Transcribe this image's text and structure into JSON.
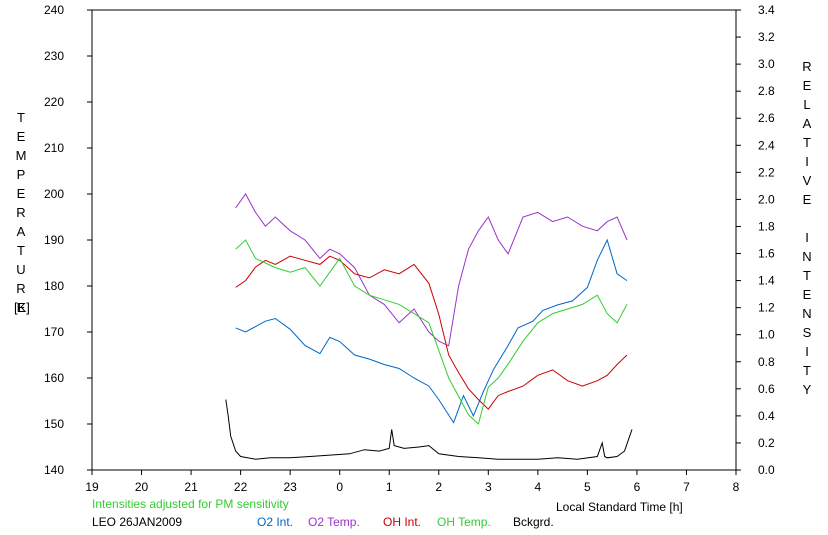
{
  "chart_data": {
    "type": "line",
    "left_axis_label": "TEMPERATURE",
    "left_axis_unit": "[K]",
    "right_axis_label": "RELATIVE INTENSITY",
    "xlabel": "Local Standard Time [h]",
    "x_ticks": [
      "19",
      "20",
      "21",
      "22",
      "23",
      "0",
      "1",
      "2",
      "3",
      "4",
      "5",
      "6",
      "7",
      "8"
    ],
    "xlim": [
      19,
      32
    ],
    "ylim_left": [
      140,
      240
    ],
    "y_ticks_left": [
      140,
      150,
      160,
      170,
      180,
      190,
      200,
      210,
      220,
      230,
      240
    ],
    "ylim_right": [
      0.0,
      3.4
    ],
    "y_ticks_right": [
      "0.0",
      "0.2",
      "0.4",
      "0.6",
      "0.8",
      "1.0",
      "1.2",
      "1.4",
      "1.6",
      "1.8",
      "2.0",
      "2.2",
      "2.4",
      "2.6",
      "2.8",
      "3.0",
      "3.2",
      "3.4"
    ],
    "note": "Intensities adjusted for PM sensitivity",
    "station": "LEO 26JAN2009",
    "series": [
      {
        "name": "O2 Int.",
        "color": "#0066cc",
        "axis": "right",
        "x": [
          21.9,
          22.1,
          22.3,
          22.5,
          22.7,
          23.0,
          23.3,
          23.6,
          23.8,
          24.0,
          24.3,
          24.6,
          24.9,
          25.2,
          25.5,
          25.8,
          26.0,
          26.3,
          26.5,
          26.7,
          26.9,
          27.1,
          27.4,
          27.6,
          27.9,
          28.1,
          28.4,
          28.7,
          29.0,
          29.2,
          29.4,
          29.6,
          29.8
        ],
        "y": [
          1.05,
          1.02,
          1.06,
          1.1,
          1.12,
          1.04,
          0.92,
          0.86,
          0.98,
          0.95,
          0.85,
          0.82,
          0.78,
          0.75,
          0.68,
          0.62,
          0.52,
          0.35,
          0.55,
          0.4,
          0.58,
          0.74,
          0.92,
          1.05,
          1.1,
          1.18,
          1.22,
          1.25,
          1.35,
          1.55,
          1.7,
          1.45,
          1.4
        ]
      },
      {
        "name": "O2 Temp.",
        "color": "#9933cc",
        "axis": "left",
        "x": [
          21.9,
          22.1,
          22.3,
          22.5,
          22.7,
          23.0,
          23.3,
          23.6,
          23.8,
          24.0,
          24.3,
          24.6,
          24.9,
          25.2,
          25.5,
          25.8,
          26.0,
          26.2,
          26.4,
          26.6,
          26.8,
          27.0,
          27.2,
          27.4,
          27.7,
          28.0,
          28.3,
          28.6,
          28.9,
          29.2,
          29.4,
          29.6,
          29.8
        ],
        "y": [
          197,
          200,
          196,
          193,
          195,
          192,
          190,
          186,
          188,
          187,
          184,
          178,
          176,
          172,
          175,
          170,
          168,
          167,
          180,
          188,
          192,
          195,
          190,
          187,
          195,
          196,
          194,
          195,
          193,
          192,
          194,
          195,
          190
        ]
      },
      {
        "name": "OH Int.",
        "color": "#cc0000",
        "axis": "right",
        "x": [
          21.9,
          22.1,
          22.3,
          22.5,
          22.7,
          23.0,
          23.3,
          23.6,
          23.8,
          24.0,
          24.3,
          24.6,
          24.9,
          25.2,
          25.5,
          25.8,
          26.0,
          26.2,
          26.4,
          26.6,
          26.8,
          27.0,
          27.2,
          27.4,
          27.7,
          28.0,
          28.3,
          28.6,
          28.9,
          29.2,
          29.4,
          29.6,
          29.8
        ],
        "y": [
          1.35,
          1.4,
          1.5,
          1.55,
          1.52,
          1.58,
          1.55,
          1.52,
          1.58,
          1.55,
          1.45,
          1.42,
          1.48,
          1.45,
          1.52,
          1.38,
          1.15,
          0.85,
          0.72,
          0.6,
          0.52,
          0.45,
          0.55,
          0.58,
          0.62,
          0.7,
          0.74,
          0.66,
          0.62,
          0.66,
          0.7,
          0.78,
          0.85
        ]
      },
      {
        "name": "OH Temp.",
        "color": "#33cc33",
        "axis": "left",
        "x": [
          21.9,
          22.1,
          22.3,
          22.5,
          22.7,
          23.0,
          23.3,
          23.6,
          23.8,
          24.0,
          24.3,
          24.6,
          24.9,
          25.2,
          25.5,
          25.8,
          26.0,
          26.2,
          26.4,
          26.6,
          26.8,
          27.0,
          27.2,
          27.4,
          27.7,
          28.0,
          28.3,
          28.6,
          28.9,
          29.2,
          29.4,
          29.6,
          29.8
        ],
        "y": [
          188,
          190,
          186,
          185,
          184,
          183,
          184,
          180,
          183,
          186,
          180,
          178,
          177,
          176,
          174,
          172,
          166,
          160,
          156,
          152,
          150,
          158,
          160,
          163,
          168,
          172,
          174,
          175,
          176,
          178,
          174,
          172,
          176
        ]
      },
      {
        "name": "Bckgrd.",
        "color": "#000000",
        "axis": "right",
        "x": [
          21.7,
          21.75,
          21.8,
          21.9,
          22.0,
          22.3,
          22.6,
          23.0,
          23.4,
          23.8,
          24.2,
          24.5,
          24.8,
          25.0,
          25.05,
          25.1,
          25.3,
          25.6,
          25.8,
          26.0,
          26.4,
          26.8,
          27.2,
          27.6,
          28.0,
          28.4,
          28.8,
          29.2,
          29.3,
          29.35,
          29.4,
          29.6,
          29.75,
          29.9
        ],
        "y": [
          0.52,
          0.4,
          0.25,
          0.14,
          0.1,
          0.08,
          0.09,
          0.09,
          0.1,
          0.11,
          0.12,
          0.15,
          0.14,
          0.16,
          0.3,
          0.18,
          0.16,
          0.17,
          0.18,
          0.12,
          0.1,
          0.09,
          0.08,
          0.08,
          0.08,
          0.09,
          0.08,
          0.1,
          0.2,
          0.1,
          0.09,
          0.1,
          0.14,
          0.3
        ]
      }
    ]
  }
}
